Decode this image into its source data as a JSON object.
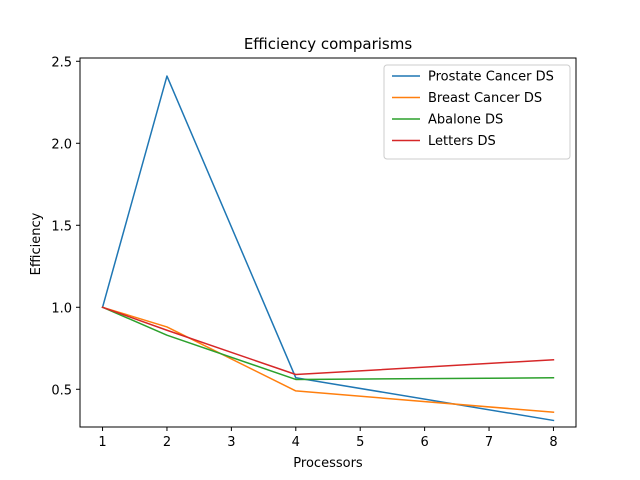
{
  "chart_data": {
    "type": "line",
    "title": "Efficiency comparisms",
    "xlabel": "Processors",
    "ylabel": "Efficiency",
    "x": [
      1,
      2,
      4,
      8
    ],
    "xlim": [
      0.65,
      8.35
    ],
    "ylim": [
      0.27,
      2.52
    ],
    "xticks": [
      1,
      2,
      3,
      4,
      5,
      6,
      7,
      8
    ],
    "xtick_labels": [
      "1",
      "2",
      "3",
      "4",
      "5",
      "6",
      "7",
      "8"
    ],
    "yticks": [
      0.5,
      1.0,
      1.5,
      2.0,
      2.5
    ],
    "ytick_labels": [
      "0.5",
      "1.0",
      "1.5",
      "2.0",
      "2.5"
    ],
    "grid": false,
    "legend_position": "top-right",
    "series": [
      {
        "name": "Prostate Cancer DS",
        "color": "#1f77b4",
        "values": [
          1.0,
          2.41,
          0.57,
          0.31
        ]
      },
      {
        "name": "Breast Cancer DS",
        "color": "#ff7f0e",
        "values": [
          1.0,
          0.88,
          0.49,
          0.36
        ]
      },
      {
        "name": "Abalone DS",
        "color": "#2ca02c",
        "values": [
          1.0,
          0.83,
          0.56,
          0.57
        ]
      },
      {
        "name": "Letters DS",
        "color": "#d62728",
        "values": [
          1.0,
          0.86,
          0.59,
          0.68
        ]
      }
    ]
  }
}
